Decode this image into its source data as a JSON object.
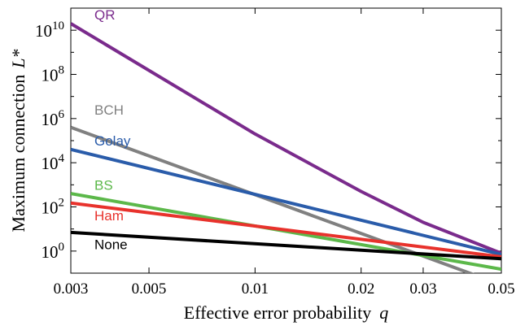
{
  "chart_data": {
    "type": "line",
    "title": "",
    "xlabel": "Effective error probability",
    "xlabel_var": "q",
    "ylabel": "Maximum connection",
    "ylabel_var": "L*",
    "xscale": "log",
    "yscale": "log",
    "xlim": [
      0.003,
      0.05
    ],
    "ylim": [
      0.1,
      100000000000.0
    ],
    "grid": false,
    "legend": "inline labels next to lines",
    "x_ticks": [
      {
        "value": 0.003,
        "label": "0.003"
      },
      {
        "value": 0.005,
        "label": "0.005"
      },
      {
        "value": 0.01,
        "label": "0.01"
      },
      {
        "value": 0.02,
        "label": "0.02"
      },
      {
        "value": 0.03,
        "label": "0.03"
      },
      {
        "value": 0.05,
        "label": "0.05"
      }
    ],
    "y_ticks": [
      {
        "value": 1,
        "base": "10",
        "exp": "0"
      },
      {
        "value": 100,
        "base": "10",
        "exp": "2"
      },
      {
        "value": 10000,
        "base": "10",
        "exp": "4"
      },
      {
        "value": 1000000,
        "base": "10",
        "exp": "6"
      },
      {
        "value": 100000000,
        "base": "10",
        "exp": "8"
      },
      {
        "value": 10000000000,
        "base": "10",
        "exp": "10"
      }
    ],
    "series": [
      {
        "name": "QR",
        "color": "#7a2b8c",
        "label_at": [
          0.0035,
          30000000000.0
        ],
        "x": [
          0.003,
          0.01,
          0.02,
          0.03,
          0.05
        ],
        "y": [
          20000000000.0,
          200000,
          500,
          20,
          0.8
        ]
      },
      {
        "name": "BCH",
        "color": "#808080",
        "label_at": [
          0.0035,
          1500000.0
        ],
        "x": [
          0.003,
          0.05
        ],
        "y": [
          400000,
          0.03
        ]
      },
      {
        "name": "Golay",
        "color": "#2a5caa",
        "label_at": [
          0.0035,
          60000
        ],
        "x": [
          0.003,
          0.05
        ],
        "y": [
          40000,
          0.7
        ]
      },
      {
        "name": "BS",
        "color": "#5cb84a",
        "label_at": [
          0.0035,
          600
        ],
        "x": [
          0.003,
          0.05
        ],
        "y": [
          400,
          0.15
        ]
      },
      {
        "name": "Ham",
        "color": "#e8322c",
        "label_at": [
          0.0035,
          25
        ],
        "x": [
          0.003,
          0.05
        ],
        "y": [
          150,
          0.55
        ]
      },
      {
        "name": "None",
        "color": "#000000",
        "label_at": [
          0.0035,
          1.2
        ],
        "x": [
          0.003,
          0.05
        ],
        "y": [
          7,
          0.45
        ]
      }
    ]
  }
}
